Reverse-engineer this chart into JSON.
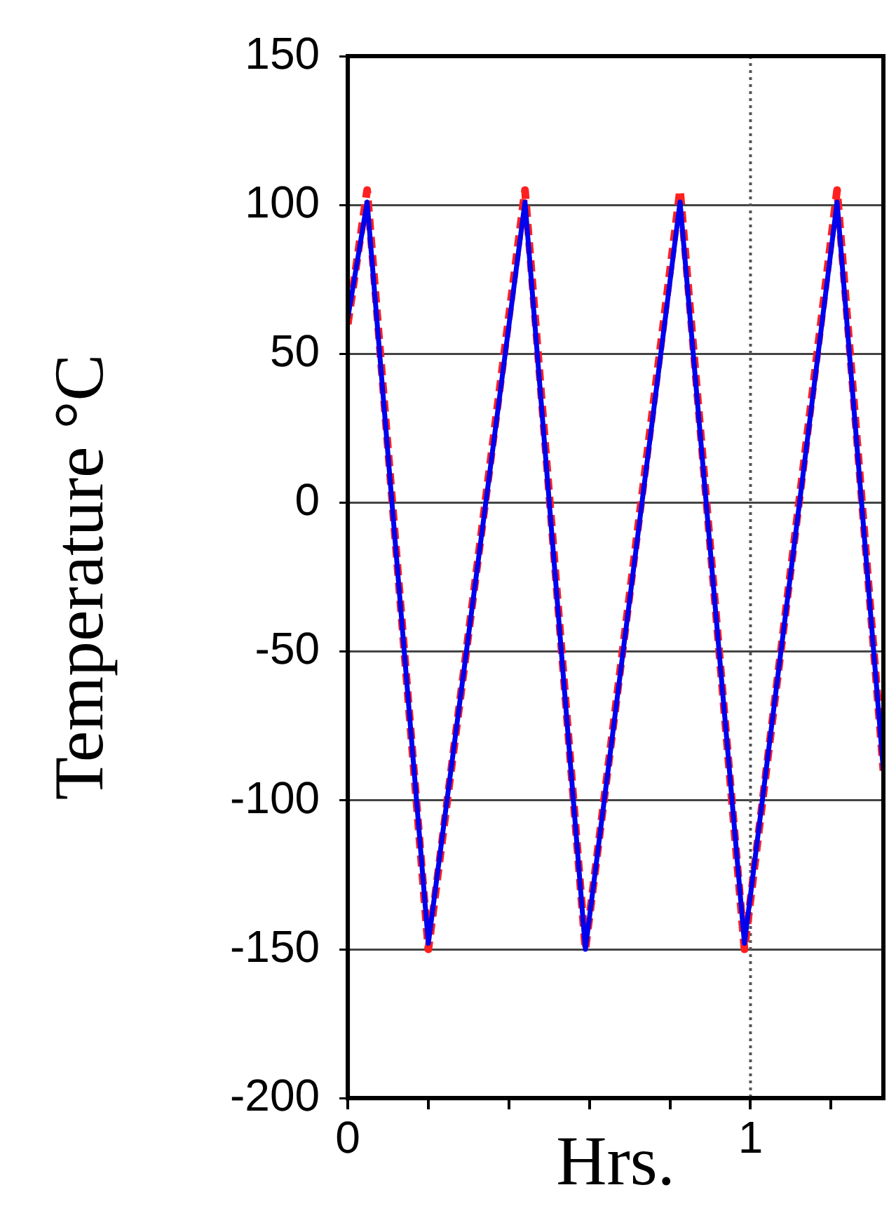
{
  "chart_data": {
    "type": "line",
    "xlabel": "Hrs.",
    "ylabel": "Temperature °C",
    "xlim": [
      0,
      1.33
    ],
    "ylim": [
      -200,
      150
    ],
    "xticks": [
      0,
      {
        "value": 0.2,
        "label": null
      },
      {
        "value": 0.4,
        "label": null
      },
      {
        "value": 0.6,
        "label": null
      },
      {
        "value": 0.8,
        "label": null
      },
      1,
      {
        "value": 1.2,
        "label": null
      }
    ],
    "yticks": [
      -200,
      -150,
      -100,
      -50,
      0,
      50,
      100,
      150
    ],
    "grid": "y",
    "marker": "none",
    "ref_lines": [
      {
        "axis": "x",
        "value": 1,
        "color": "#555555",
        "line_style": "dotted"
      }
    ],
    "series": [
      {
        "color": "#ff2020",
        "line_style": "dashed",
        "x": [
          0,
          0.048,
          0.2,
          0.44,
          0.59,
          0.825,
          0.985,
          1.215,
          1.33
        ],
        "values": [
          60,
          105,
          -150,
          105,
          -150,
          105,
          -150,
          105,
          -90
        ]
      },
      {
        "color": "#0000ee",
        "line_style": "solid",
        "x": [
          0,
          0.048,
          0.2,
          0.44,
          0.59,
          0.825,
          0.985,
          1.215,
          1.33
        ],
        "values": [
          62,
          101,
          -148,
          101,
          -150,
          101,
          -148,
          101,
          -90
        ]
      }
    ]
  }
}
